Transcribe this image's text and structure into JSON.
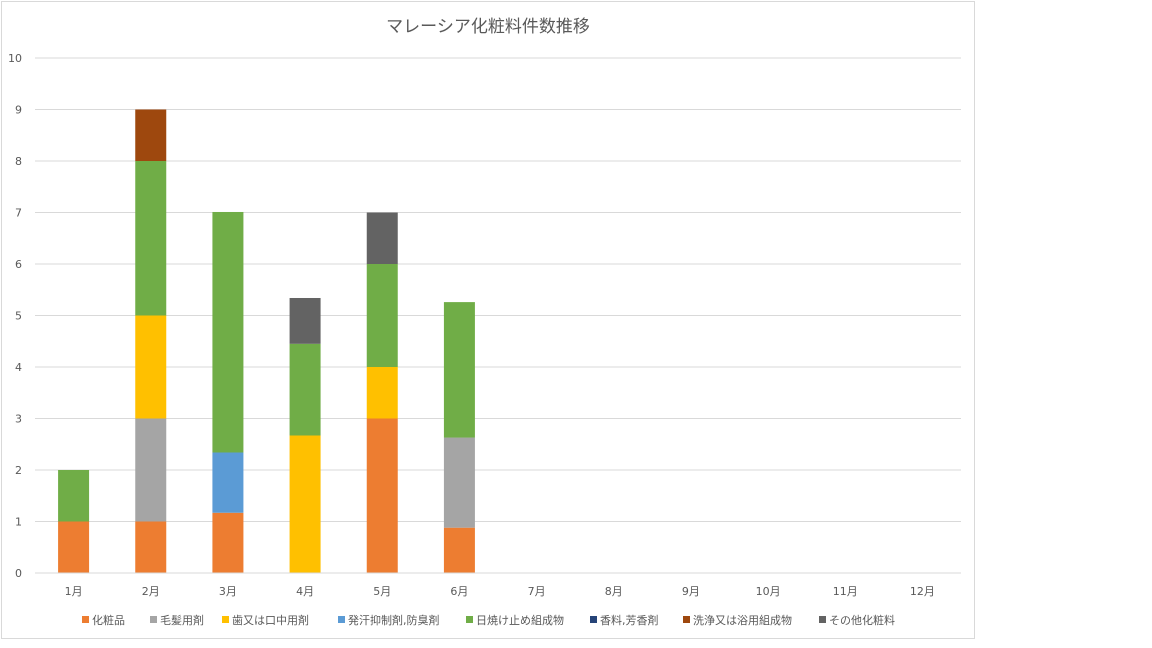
{
  "chart_data": {
    "type": "bar",
    "stacked": true,
    "title": "マレーシア化粧料件数推移",
    "categories": [
      "1月",
      "2月",
      "3月",
      "4月",
      "5月",
      "6月",
      "7月",
      "8月",
      "9月",
      "10月",
      "11月",
      "12月"
    ],
    "ylim": [
      0,
      10
    ],
    "yticks": [
      "0",
      "1",
      "2",
      "3",
      "4",
      "5",
      "6",
      "7",
      "8",
      "9",
      "10"
    ],
    "grid": true,
    "legend_position": "bottom",
    "series": [
      {
        "name": "化粧品",
        "color": "#ED7D31",
        "values": [
          1,
          1,
          1.17,
          0,
          3,
          0.88,
          0,
          0,
          0,
          0,
          0,
          0
        ]
      },
      {
        "name": "毛髪用剤",
        "color": "#A5A5A5",
        "values": [
          0,
          2,
          0,
          0,
          0,
          1.75,
          0,
          0,
          0,
          0,
          0,
          0
        ]
      },
      {
        "name": "歯又は口中用剤",
        "color": "#FFC000",
        "values": [
          0,
          2,
          0,
          2.67,
          1,
          0,
          0,
          0,
          0,
          0,
          0,
          0
        ]
      },
      {
        "name": "発汗抑制剤,防臭剤",
        "color": "#5B9BD5",
        "values": [
          0,
          0,
          1.17,
          0,
          0,
          0,
          0,
          0,
          0,
          0,
          0,
          0
        ]
      },
      {
        "name": "日焼け止め組成物",
        "color": "#70AD47",
        "values": [
          1,
          3,
          4.67,
          1.78,
          2,
          2.63,
          0,
          0,
          0,
          0,
          0,
          0
        ]
      },
      {
        "name": "香料,芳香剤",
        "color": "#264478",
        "values": [
          0,
          0,
          0,
          0,
          0,
          0,
          0,
          0,
          0,
          0,
          0,
          0
        ]
      },
      {
        "name": "洗浄又は浴用組成物",
        "color": "#9E480E",
        "values": [
          0,
          1,
          0,
          0,
          0,
          0,
          0,
          0,
          0,
          0,
          0,
          0
        ]
      },
      {
        "name": "その他化粧料",
        "color": "#636363",
        "values": [
          0,
          0,
          0,
          0.89,
          1,
          0,
          0,
          0,
          0,
          0,
          0,
          0
        ]
      }
    ]
  }
}
